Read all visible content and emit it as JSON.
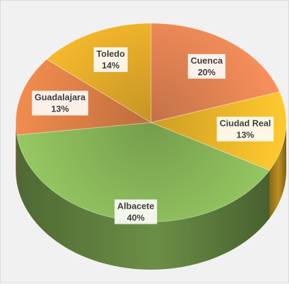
{
  "chart_data": {
    "type": "pie",
    "style": "3d",
    "title": "",
    "categories": [
      "Cuenca",
      "Ciudad Real",
      "Albacete",
      "Guadalajara",
      "Toledo"
    ],
    "values": [
      20,
      13,
      40,
      13,
      14
    ],
    "value_labels": [
      "20%",
      "13%",
      "40%",
      "13%",
      "14%"
    ],
    "colors": [
      "#ee8a58",
      "#fbbf2c",
      "#8fbf5d",
      "#e6854a",
      "#f0b52c"
    ],
    "legend": "none"
  }
}
